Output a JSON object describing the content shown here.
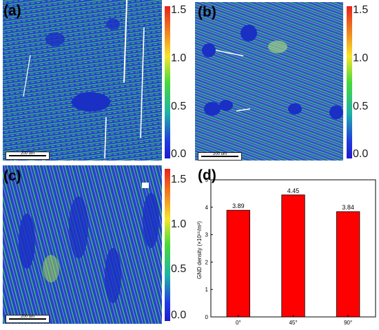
{
  "panels": [
    {
      "label": "(a)",
      "scale_bar": "200 um"
    },
    {
      "label": "(b)",
      "scale_bar": "200 um"
    },
    {
      "label": "(c)",
      "scale_bar": "200 um"
    }
  ],
  "colorbar": {
    "ticks": [
      "1.5",
      "1.0",
      "0.5",
      "0.0"
    ],
    "colors": [
      "#e8231d",
      "#f7e62a",
      "#48d93a",
      "#1f3ee0"
    ]
  },
  "chart_label": "(d)",
  "chart_data": {
    "type": "bar",
    "categories": [
      "0°",
      "45°",
      "90°"
    ],
    "values": [
      3.89,
      4.45,
      3.84
    ],
    "data_labels": [
      "3.89",
      "4.45",
      "3.84"
    ],
    "ylabel": "GND density (×10¹⁵/m²)",
    "ylim": [
      0,
      5
    ],
    "yticks": [
      "0",
      "1",
      "2",
      "3",
      "4",
      "5"
    ],
    "bar_color": "#ff0000",
    "grid": false
  }
}
